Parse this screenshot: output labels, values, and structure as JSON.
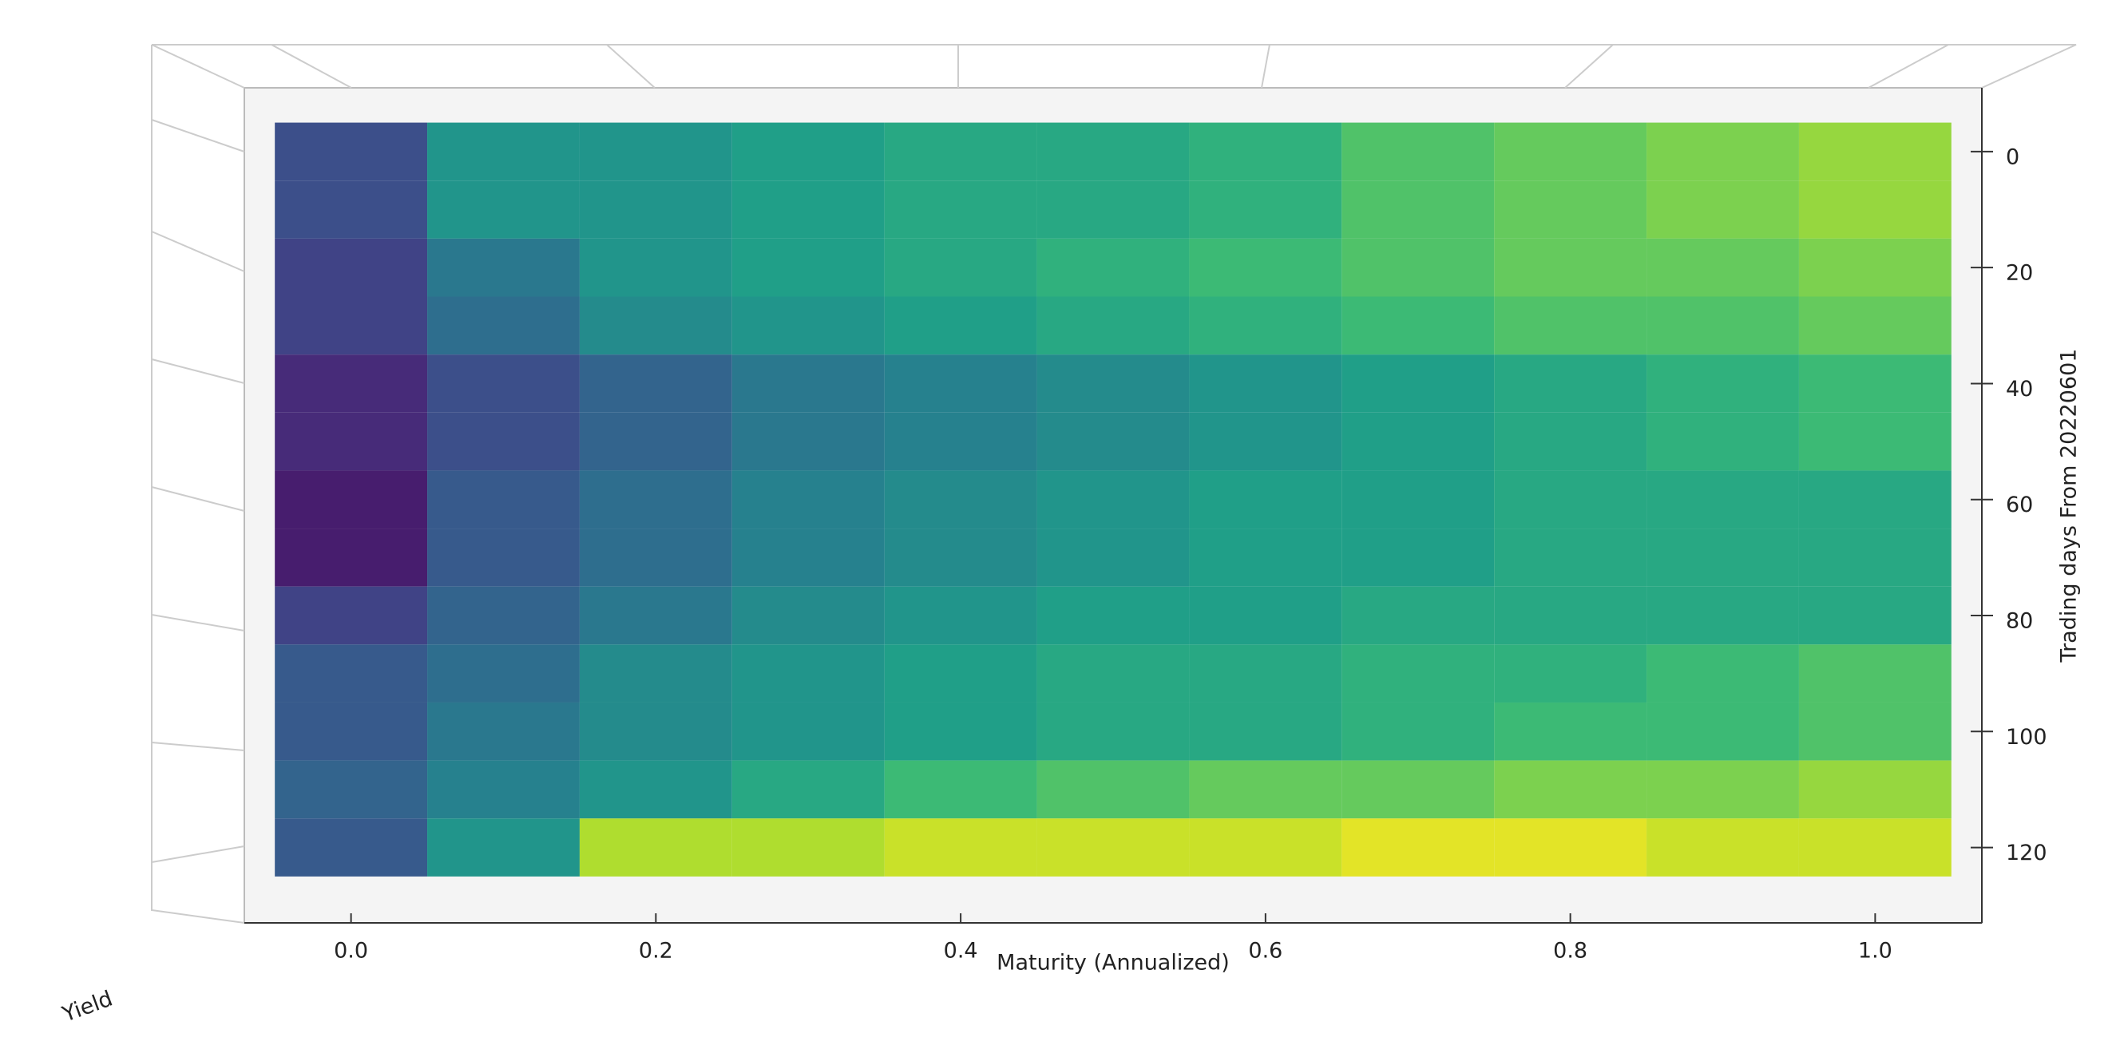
{
  "chart_data": {
    "type": "scatter3d",
    "xlabel": "Maturity (Annualized)",
    "ylabel": "Trading days From 20220601",
    "zlabel": "Yield",
    "colormap": "viridis",
    "xlim": [
      -0.07,
      1.07
    ],
    "ylim": [
      133,
      -11
    ],
    "zlim": [
      0.5,
      3.0
    ],
    "xticks": [
      {
        "value": 0,
        "label": "0.0"
      },
      0.2,
      0.4,
      0.6,
      0.8,
      {
        "value": 1,
        "label": "1.0"
      }
    ],
    "yticks": [
      0,
      20,
      40,
      60,
      80,
      100,
      120
    ],
    "x": [
      0,
      0.1,
      0.2,
      0.3,
      0.4,
      0.5,
      0.6,
      0.7,
      0.8,
      0.9,
      1.0
    ],
    "y": [
      0,
      10,
      20,
      30,
      40,
      50,
      60,
      70,
      80,
      90,
      100,
      110,
      120
    ],
    "values": [
      [
        1.1,
        1.8,
        1.8,
        1.9,
        2.0,
        2.0,
        2.1,
        2.3,
        2.4,
        2.5,
        2.6
      ],
      [
        1.1,
        1.8,
        1.8,
        1.9,
        2.0,
        2.0,
        2.1,
        2.3,
        2.4,
        2.5,
        2.6
      ],
      [
        1.0,
        1.5,
        1.8,
        1.9,
        2.0,
        2.1,
        2.2,
        2.3,
        2.4,
        2.4,
        2.5
      ],
      [
        1.0,
        1.4,
        1.7,
        1.8,
        1.9,
        2.0,
        2.1,
        2.2,
        2.3,
        2.3,
        2.4
      ],
      [
        0.8,
        1.1,
        1.3,
        1.5,
        1.6,
        1.7,
        1.8,
        1.9,
        2.0,
        2.1,
        2.2
      ],
      [
        0.8,
        1.1,
        1.3,
        1.5,
        1.6,
        1.7,
        1.8,
        1.9,
        2.0,
        2.1,
        2.2
      ],
      [
        0.7,
        1.2,
        1.4,
        1.6,
        1.7,
        1.8,
        1.9,
        1.9,
        2.0,
        2.0,
        2.0
      ],
      [
        0.7,
        1.2,
        1.4,
        1.6,
        1.7,
        1.8,
        1.9,
        1.9,
        2.0,
        2.0,
        2.0
      ],
      [
        1.0,
        1.3,
        1.5,
        1.7,
        1.8,
        1.9,
        1.9,
        2.0,
        2.0,
        2.0,
        2.0
      ],
      [
        1.2,
        1.4,
        1.7,
        1.8,
        1.9,
        2.0,
        2.0,
        2.1,
        2.1,
        2.2,
        2.3
      ],
      [
        1.2,
        1.5,
        1.7,
        1.8,
        1.9,
        2.0,
        2.0,
        2.1,
        2.2,
        2.2,
        2.3
      ],
      [
        1.3,
        1.6,
        1.8,
        2.0,
        2.2,
        2.3,
        2.4,
        2.4,
        2.5,
        2.5,
        2.6
      ],
      [
        1.2,
        1.8,
        2.7,
        2.7,
        2.8,
        2.8,
        2.8,
        2.9,
        2.9,
        2.8,
        2.8
      ]
    ]
  }
}
